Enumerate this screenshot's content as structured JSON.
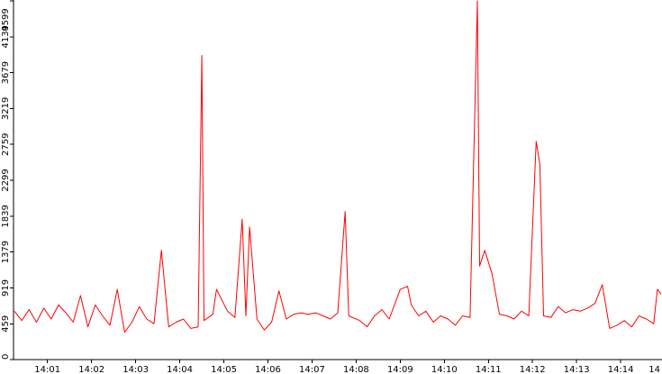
{
  "chart_data": {
    "type": "line",
    "title": "",
    "xlabel": "",
    "ylabel": "",
    "grid": false,
    "ylim": [
      0,
      4599
    ],
    "y_ticks": [
      0,
      459,
      919,
      1379,
      1839,
      2299,
      2759,
      3219,
      3679,
      4139,
      4599
    ],
    "x_ticks": [
      "14:01",
      "14:02",
      "14:03",
      "14:04",
      "14:05",
      "14:06",
      "14:07",
      "14:08",
      "14:09",
      "14:10",
      "14:11",
      "14:12",
      "14:13",
      "14:14",
      "14"
    ],
    "x_start": "14:00:15",
    "x_end": "14:14:55",
    "series": [
      {
        "name": "",
        "color": "#ff0000",
        "points": [
          [
            "14:00:15",
            620
          ],
          [
            "14:00:25",
            500
          ],
          [
            "14:00:35",
            640
          ],
          [
            "14:00:45",
            480
          ],
          [
            "14:00:55",
            660
          ],
          [
            "14:01:05",
            520
          ],
          [
            "14:01:15",
            700
          ],
          [
            "14:01:25",
            600
          ],
          [
            "14:01:35",
            480
          ],
          [
            "14:01:45",
            820
          ],
          [
            "14:01:55",
            420
          ],
          [
            "14:02:05",
            700
          ],
          [
            "14:02:15",
            560
          ],
          [
            "14:02:25",
            440
          ],
          [
            "14:02:35",
            900
          ],
          [
            "14:02:45",
            350
          ],
          [
            "14:02:55",
            480
          ],
          [
            "14:03:05",
            680
          ],
          [
            "14:03:15",
            520
          ],
          [
            "14:03:25",
            460
          ],
          [
            "14:03:35",
            1400
          ],
          [
            "14:03:45",
            420
          ],
          [
            "14:03:55",
            480
          ],
          [
            "14:04:05",
            520
          ],
          [
            "14:04:15",
            400
          ],
          [
            "14:04:25",
            420
          ],
          [
            "14:04:30",
            3900
          ],
          [
            "14:04:33",
            500
          ],
          [
            "14:04:45",
            580
          ],
          [
            "14:04:50",
            900
          ],
          [
            "14:05:05",
            620
          ],
          [
            "14:05:15",
            540
          ],
          [
            "14:05:25",
            1800
          ],
          [
            "14:05:30",
            560
          ],
          [
            "14:05:35",
            1700
          ],
          [
            "14:05:45",
            520
          ],
          [
            "14:05:55",
            380
          ],
          [
            "14:06:05",
            480
          ],
          [
            "14:06:15",
            880
          ],
          [
            "14:06:25",
            520
          ],
          [
            "14:06:35",
            580
          ],
          [
            "14:06:45",
            600
          ],
          [
            "14:06:55",
            580
          ],
          [
            "14:07:05",
            600
          ],
          [
            "14:07:15",
            560
          ],
          [
            "14:07:25",
            520
          ],
          [
            "14:07:35",
            600
          ],
          [
            "14:07:45",
            1900
          ],
          [
            "14:07:50",
            560
          ],
          [
            "14:08:05",
            500
          ],
          [
            "14:08:15",
            420
          ],
          [
            "14:08:25",
            560
          ],
          [
            "14:08:35",
            640
          ],
          [
            "14:08:45",
            520
          ],
          [
            "14:09:00",
            900
          ],
          [
            "14:09:10",
            940
          ],
          [
            "14:09:15",
            700
          ],
          [
            "14:09:25",
            560
          ],
          [
            "14:09:35",
            620
          ],
          [
            "14:09:45",
            480
          ],
          [
            "14:09:55",
            560
          ],
          [
            "14:10:05",
            520
          ],
          [
            "14:10:15",
            440
          ],
          [
            "14:10:25",
            560
          ],
          [
            "14:10:35",
            540
          ],
          [
            "14:10:45",
            4599
          ],
          [
            "14:10:48",
            1200
          ],
          [
            "14:10:55",
            1400
          ],
          [
            "14:11:05",
            1100
          ],
          [
            "14:11:15",
            580
          ],
          [
            "14:11:25",
            560
          ],
          [
            "14:11:35",
            520
          ],
          [
            "14:11:45",
            620
          ],
          [
            "14:11:55",
            560
          ],
          [
            "14:12:05",
            2800
          ],
          [
            "14:12:10",
            2500
          ],
          [
            "14:12:15",
            560
          ],
          [
            "14:12:25",
            540
          ],
          [
            "14:12:35",
            680
          ],
          [
            "14:12:45",
            600
          ],
          [
            "14:12:55",
            640
          ],
          [
            "14:13:05",
            620
          ],
          [
            "14:13:15",
            660
          ],
          [
            "14:13:25",
            720
          ],
          [
            "14:13:35",
            960
          ],
          [
            "14:13:45",
            400
          ],
          [
            "14:13:55",
            440
          ],
          [
            "14:14:05",
            500
          ],
          [
            "14:14:15",
            420
          ],
          [
            "14:14:25",
            560
          ],
          [
            "14:14:35",
            520
          ],
          [
            "14:14:45",
            460
          ],
          [
            "14:14:50",
            900
          ],
          [
            "14:14:55",
            840
          ]
        ]
      }
    ]
  }
}
